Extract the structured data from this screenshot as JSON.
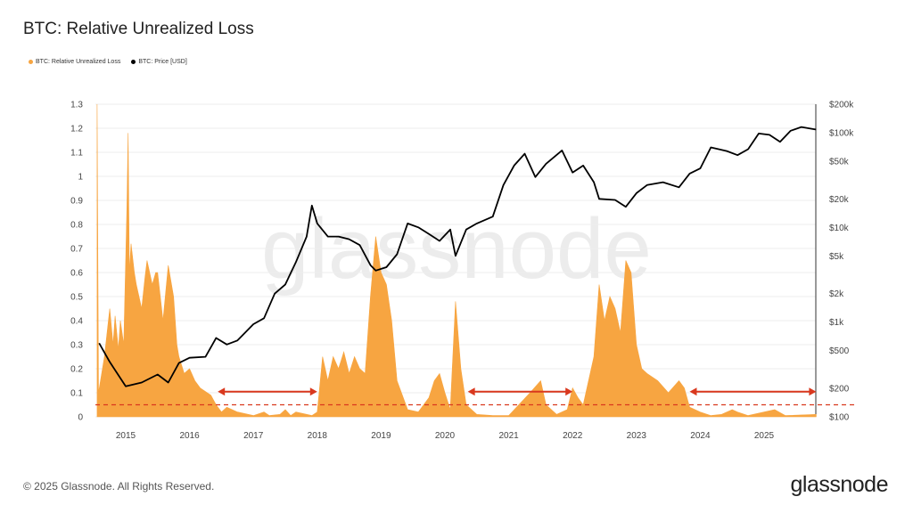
{
  "title": "BTC: Relative Unrealized Loss",
  "footer": {
    "copyright": "© 2025 Glassnode. All Rights Reserved.",
    "logo": "glassnode"
  },
  "watermark": "glassnode",
  "colors": {
    "loss": "#f7a541",
    "price": "#000000",
    "threshold": "#d9381e",
    "arrows": "#d9381e"
  },
  "chart_data": {
    "type": "area",
    "title": "BTC: Relative Unrealized Loss",
    "legend": {
      "placement": "top-left",
      "entries": [
        "BTC: Relative Unrealized Loss",
        "BTC: Price [USD]"
      ]
    },
    "grid": true,
    "x_ticks": [
      "2015",
      "2016",
      "2017",
      "2018",
      "2019",
      "2020",
      "2021",
      "2022",
      "2023",
      "2024",
      "2025"
    ],
    "xlim": [
      "2014-07-20",
      "2025-10-25"
    ],
    "y_left": {
      "ylim": [
        0,
        1.3
      ],
      "ticks": [
        "0",
        "0.1",
        "0.2",
        "0.3",
        "0.4",
        "0.5",
        "0.6",
        "0.7",
        "0.8",
        "0.9",
        "1",
        "1.1",
        "1.2",
        "1.3"
      ]
    },
    "y_right": {
      "scale": "log",
      "ylim": [
        100,
        200000
      ],
      "ticks": [
        {
          "v": 100,
          "label": "$100"
        },
        {
          "v": 200,
          "label": "$200"
        },
        {
          "v": 500,
          "label": "$500"
        },
        {
          "v": 1000,
          "label": "$1k"
        },
        {
          "v": 2000,
          "label": "$2k"
        },
        {
          "v": 5000,
          "label": "$5k"
        },
        {
          "v": 10000,
          "label": "$10k"
        },
        {
          "v": 20000,
          "label": "$20k"
        },
        {
          "v": 50000,
          "label": "$50k"
        },
        {
          "v": 100000,
          "label": "$100k"
        },
        {
          "v": 200000,
          "label": "$200k"
        }
      ]
    },
    "series": [
      {
        "name": "BTC: Relative Unrealized Loss",
        "axis": "left",
        "type": "area",
        "points": [
          [
            "2014-07-20",
            1.3
          ],
          [
            "2014-07-28",
            0.1
          ],
          [
            "2014-09",
            0.25
          ],
          [
            "2014-10",
            0.45
          ],
          [
            "2014-10-20",
            0.3
          ],
          [
            "2014-11",
            0.42
          ],
          [
            "2014-11-20",
            0.28
          ],
          [
            "2014-12",
            0.4
          ],
          [
            "2014-12-20",
            0.3
          ],
          [
            "2015-01-08",
            0.88
          ],
          [
            "2015-01-15",
            1.18
          ],
          [
            "2015-01-22",
            0.6
          ],
          [
            "2015-02",
            0.72
          ],
          [
            "2015-02-20",
            0.6
          ],
          [
            "2015-03",
            0.55
          ],
          [
            "2015-04",
            0.45
          ],
          [
            "2015-04-20",
            0.58
          ],
          [
            "2015-05",
            0.65
          ],
          [
            "2015-06",
            0.55
          ],
          [
            "2015-06-20",
            0.6
          ],
          [
            "2015-07",
            0.6
          ],
          [
            "2015-08",
            0.4
          ],
          [
            "2015-09",
            0.63
          ],
          [
            "2015-10",
            0.5
          ],
          [
            "2015-10-20",
            0.3
          ],
          [
            "2015-11",
            0.25
          ],
          [
            "2015-12",
            0.18
          ],
          [
            "2016-01",
            0.2
          ],
          [
            "2016-02",
            0.15
          ],
          [
            "2016-03",
            0.12
          ],
          [
            "2016-05",
            0.09
          ],
          [
            "2016-06",
            0.05
          ],
          [
            "2016-07",
            0.02
          ],
          [
            "2016-08",
            0.04
          ],
          [
            "2016-10",
            0.02
          ],
          [
            "2017-01",
            0.005
          ],
          [
            "2017-03",
            0.02
          ],
          [
            "2017-04",
            0.005
          ],
          [
            "2017-06",
            0.01
          ],
          [
            "2017-07",
            0.03
          ],
          [
            "2017-08",
            0.005
          ],
          [
            "2017-09",
            0.02
          ],
          [
            "2017-12",
            0.005
          ],
          [
            "2018-01",
            0.02
          ],
          [
            "2018-02",
            0.25
          ],
          [
            "2018-03",
            0.15
          ],
          [
            "2018-04",
            0.25
          ],
          [
            "2018-05",
            0.2
          ],
          [
            "2018-06",
            0.27
          ],
          [
            "2018-07",
            0.18
          ],
          [
            "2018-08",
            0.25
          ],
          [
            "2018-09",
            0.2
          ],
          [
            "2018-10",
            0.18
          ],
          [
            "2018-11",
            0.5
          ],
          [
            "2018-12",
            0.75
          ],
          [
            "2019-01",
            0.6
          ],
          [
            "2019-02",
            0.55
          ],
          [
            "2019-03",
            0.4
          ],
          [
            "2019-04",
            0.15
          ],
          [
            "2019-06",
            0.03
          ],
          [
            "2019-08",
            0.02
          ],
          [
            "2019-10",
            0.08
          ],
          [
            "2019-11",
            0.15
          ],
          [
            "2019-12",
            0.18
          ],
          [
            "2020-01",
            0.1
          ],
          [
            "2020-02",
            0.03
          ],
          [
            "2020-03",
            0.48
          ],
          [
            "2020-04",
            0.2
          ],
          [
            "2020-05",
            0.05
          ],
          [
            "2020-07",
            0.01
          ],
          [
            "2020-10",
            0.005
          ],
          [
            "2021-01",
            0.005
          ],
          [
            "2021-05",
            0.1
          ],
          [
            "2021-07",
            0.15
          ],
          [
            "2021-08",
            0.05
          ],
          [
            "2021-10",
            0.01
          ],
          [
            "2021-12",
            0.03
          ],
          [
            "2022-01",
            0.12
          ],
          [
            "2022-02",
            0.08
          ],
          [
            "2022-03",
            0.05
          ],
          [
            "2022-05",
            0.25
          ],
          [
            "2022-06",
            0.55
          ],
          [
            "2022-07",
            0.4
          ],
          [
            "2022-08",
            0.5
          ],
          [
            "2022-09",
            0.45
          ],
          [
            "2022-10",
            0.35
          ],
          [
            "2022-11",
            0.65
          ],
          [
            "2022-12",
            0.6
          ],
          [
            "2023-01",
            0.3
          ],
          [
            "2023-02",
            0.2
          ],
          [
            "2023-03",
            0.18
          ],
          [
            "2023-05",
            0.15
          ],
          [
            "2023-07",
            0.1
          ],
          [
            "2023-09",
            0.15
          ],
          [
            "2023-10",
            0.12
          ],
          [
            "2023-11",
            0.04
          ],
          [
            "2024-01",
            0.02
          ],
          [
            "2024-03",
            0.005
          ],
          [
            "2024-05",
            0.01
          ],
          [
            "2024-07",
            0.03
          ],
          [
            "2024-08",
            0.02
          ],
          [
            "2024-10",
            0.005
          ],
          [
            "2025-03",
            0.03
          ],
          [
            "2025-05",
            0.005
          ],
          [
            "2025-10-25",
            0.01
          ]
        ]
      },
      {
        "name": "BTC: Price [USD]",
        "axis": "right",
        "type": "line",
        "points": [
          [
            "2014-08",
            600
          ],
          [
            "2014-10",
            380
          ],
          [
            "2015-01",
            210
          ],
          [
            "2015-04",
            230
          ],
          [
            "2015-07",
            280
          ],
          [
            "2015-09",
            230
          ],
          [
            "2015-11",
            370
          ],
          [
            "2016-01",
            420
          ],
          [
            "2016-04",
            430
          ],
          [
            "2016-06",
            680
          ],
          [
            "2016-08",
            580
          ],
          [
            "2016-10",
            640
          ],
          [
            "2017-01",
            950
          ],
          [
            "2017-03",
            1100
          ],
          [
            "2017-05",
            2000
          ],
          [
            "2017-07",
            2500
          ],
          [
            "2017-09",
            4300
          ],
          [
            "2017-11",
            8000
          ],
          [
            "2017-12",
            17000
          ],
          [
            "2018-01",
            11000
          ],
          [
            "2018-03",
            8000
          ],
          [
            "2018-05",
            8000
          ],
          [
            "2018-07",
            7500
          ],
          [
            "2018-09",
            6500
          ],
          [
            "2018-11",
            4000
          ],
          [
            "2018-12",
            3500
          ],
          [
            "2019-02",
            3800
          ],
          [
            "2019-04",
            5200
          ],
          [
            "2019-06",
            11000
          ],
          [
            "2019-08",
            10000
          ],
          [
            "2019-10",
            8500
          ],
          [
            "2019-12",
            7200
          ],
          [
            "2020-02",
            9500
          ],
          [
            "2020-03",
            5000
          ],
          [
            "2020-05",
            9500
          ],
          [
            "2020-07",
            11000
          ],
          [
            "2020-10",
            13000
          ],
          [
            "2020-12",
            28000
          ],
          [
            "2021-02",
            45000
          ],
          [
            "2021-04",
            60000
          ],
          [
            "2021-06",
            34000
          ],
          [
            "2021-08",
            47000
          ],
          [
            "2021-11",
            65000
          ],
          [
            "2022-01",
            38000
          ],
          [
            "2022-03",
            45000
          ],
          [
            "2022-05",
            30000
          ],
          [
            "2022-06",
            20000
          ],
          [
            "2022-09",
            19500
          ],
          [
            "2022-11",
            16500
          ],
          [
            "2023-01",
            23000
          ],
          [
            "2023-03",
            28000
          ],
          [
            "2023-06",
            30000
          ],
          [
            "2023-09",
            26500
          ],
          [
            "2023-11",
            37000
          ],
          [
            "2024-01",
            42000
          ],
          [
            "2024-03",
            70000
          ],
          [
            "2024-06",
            64000
          ],
          [
            "2024-08",
            58000
          ],
          [
            "2024-10",
            67000
          ],
          [
            "2024-12",
            98000
          ],
          [
            "2025-02",
            95000
          ],
          [
            "2025-04",
            80000
          ],
          [
            "2025-06",
            105000
          ],
          [
            "2025-08",
            115000
          ],
          [
            "2025-10-25",
            108000
          ]
        ]
      }
    ],
    "annotations": {
      "threshold_line": {
        "value": 0.05,
        "style": "dashed"
      },
      "arrows": [
        {
          "from": "2016-06-10",
          "to": "2018-01-01",
          "value": 0.09
        },
        {
          "from": "2020-05-10",
          "to": "2022-01-01",
          "value": 0.09
        },
        {
          "from": "2023-11-01",
          "to": "2025-10-25",
          "value": 0.09
        }
      ]
    }
  }
}
